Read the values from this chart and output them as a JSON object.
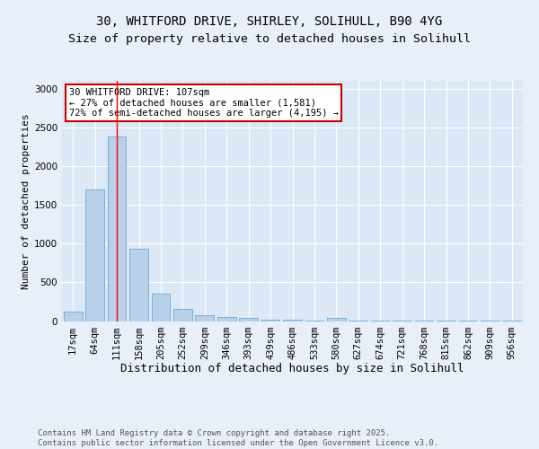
{
  "title1": "30, WHITFORD DRIVE, SHIRLEY, SOLIHULL, B90 4YG",
  "title2": "Size of property relative to detached houses in Solihull",
  "xlabel": "Distribution of detached houses by size in Solihull",
  "ylabel": "Number of detached properties",
  "categories": [
    "17sqm",
    "64sqm",
    "111sqm",
    "158sqm",
    "205sqm",
    "252sqm",
    "299sqm",
    "346sqm",
    "393sqm",
    "439sqm",
    "486sqm",
    "533sqm",
    "580sqm",
    "627sqm",
    "674sqm",
    "721sqm",
    "768sqm",
    "815sqm",
    "862sqm",
    "909sqm",
    "956sqm"
  ],
  "values": [
    125,
    1700,
    2380,
    930,
    350,
    155,
    80,
    55,
    35,
    20,
    15,
    10,
    35,
    5,
    5,
    3,
    3,
    2,
    2,
    2,
    2
  ],
  "bar_color": "#b8d0e8",
  "bar_edge_color": "#6aaad4",
  "red_line_index": 2,
  "annotation_text": "30 WHITFORD DRIVE: 107sqm\n← 27% of detached houses are smaller (1,581)\n72% of semi-detached houses are larger (4,195) →",
  "annotation_box_color": "#ffffff",
  "annotation_border_color": "#cc0000",
  "ylim": [
    0,
    3100
  ],
  "yticks": [
    0,
    500,
    1000,
    1500,
    2000,
    2500,
    3000
  ],
  "bg_color": "#e8eff8",
  "plot_bg_color": "#dce8f5",
  "footer": "Contains HM Land Registry data © Crown copyright and database right 2025.\nContains public sector information licensed under the Open Government Licence v3.0.",
  "title1_fontsize": 10,
  "title2_fontsize": 9.5,
  "xlabel_fontsize": 9,
  "ylabel_fontsize": 8,
  "tick_fontsize": 7.5,
  "annotation_fontsize": 7.5,
  "footer_fontsize": 6.5
}
